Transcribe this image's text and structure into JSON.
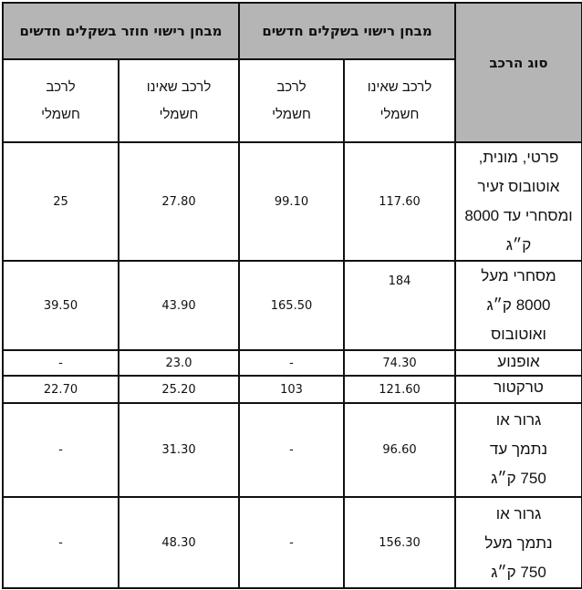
{
  "header": {
    "vehicle_type": "סוג הרכב",
    "license_test": "מבחן רישוי בשקלים חדשים",
    "retest": "מבחן רישוי חוזר בשקלים חדשים",
    "non_electric": "לרכב שאינו חשמלי",
    "electric": "לרכב חשמלי"
  },
  "rows": [
    {
      "type": "פרטי, מונית, אוטובוס זעיר ומסחרי עד 8000 ק״ג",
      "test_non_electric": "117.60",
      "test_electric": "99.10",
      "retest_non_electric": "27.80",
      "retest_electric": "25"
    },
    {
      "type": "מסחרי מעל 8000 ק״ג ואוטובוס",
      "test_non_electric": "184",
      "test_electric": "165.50",
      "retest_non_electric": "43.90",
      "retest_electric": "39.50"
    },
    {
      "type": "אופנוע",
      "test_non_electric": "74.30",
      "test_electric": "-",
      "retest_non_electric": "23.0",
      "retest_electric": "-"
    },
    {
      "type": "טרקטור",
      "test_non_electric": "121.60",
      "test_electric": "103",
      "retest_non_electric": "25.20",
      "retest_electric": "22.70"
    },
    {
      "type": "גרור או נתמך עד 750 ק״ג",
      "test_non_electric": "96.60",
      "test_electric": "-",
      "retest_non_electric": "31.30",
      "retest_electric": "-"
    },
    {
      "type": "גרור או נתמך מעל 750 ק״ג",
      "test_non_electric": "156.30",
      "test_electric": "-",
      "retest_non_electric": "48.30",
      "retest_electric": "-"
    }
  ]
}
